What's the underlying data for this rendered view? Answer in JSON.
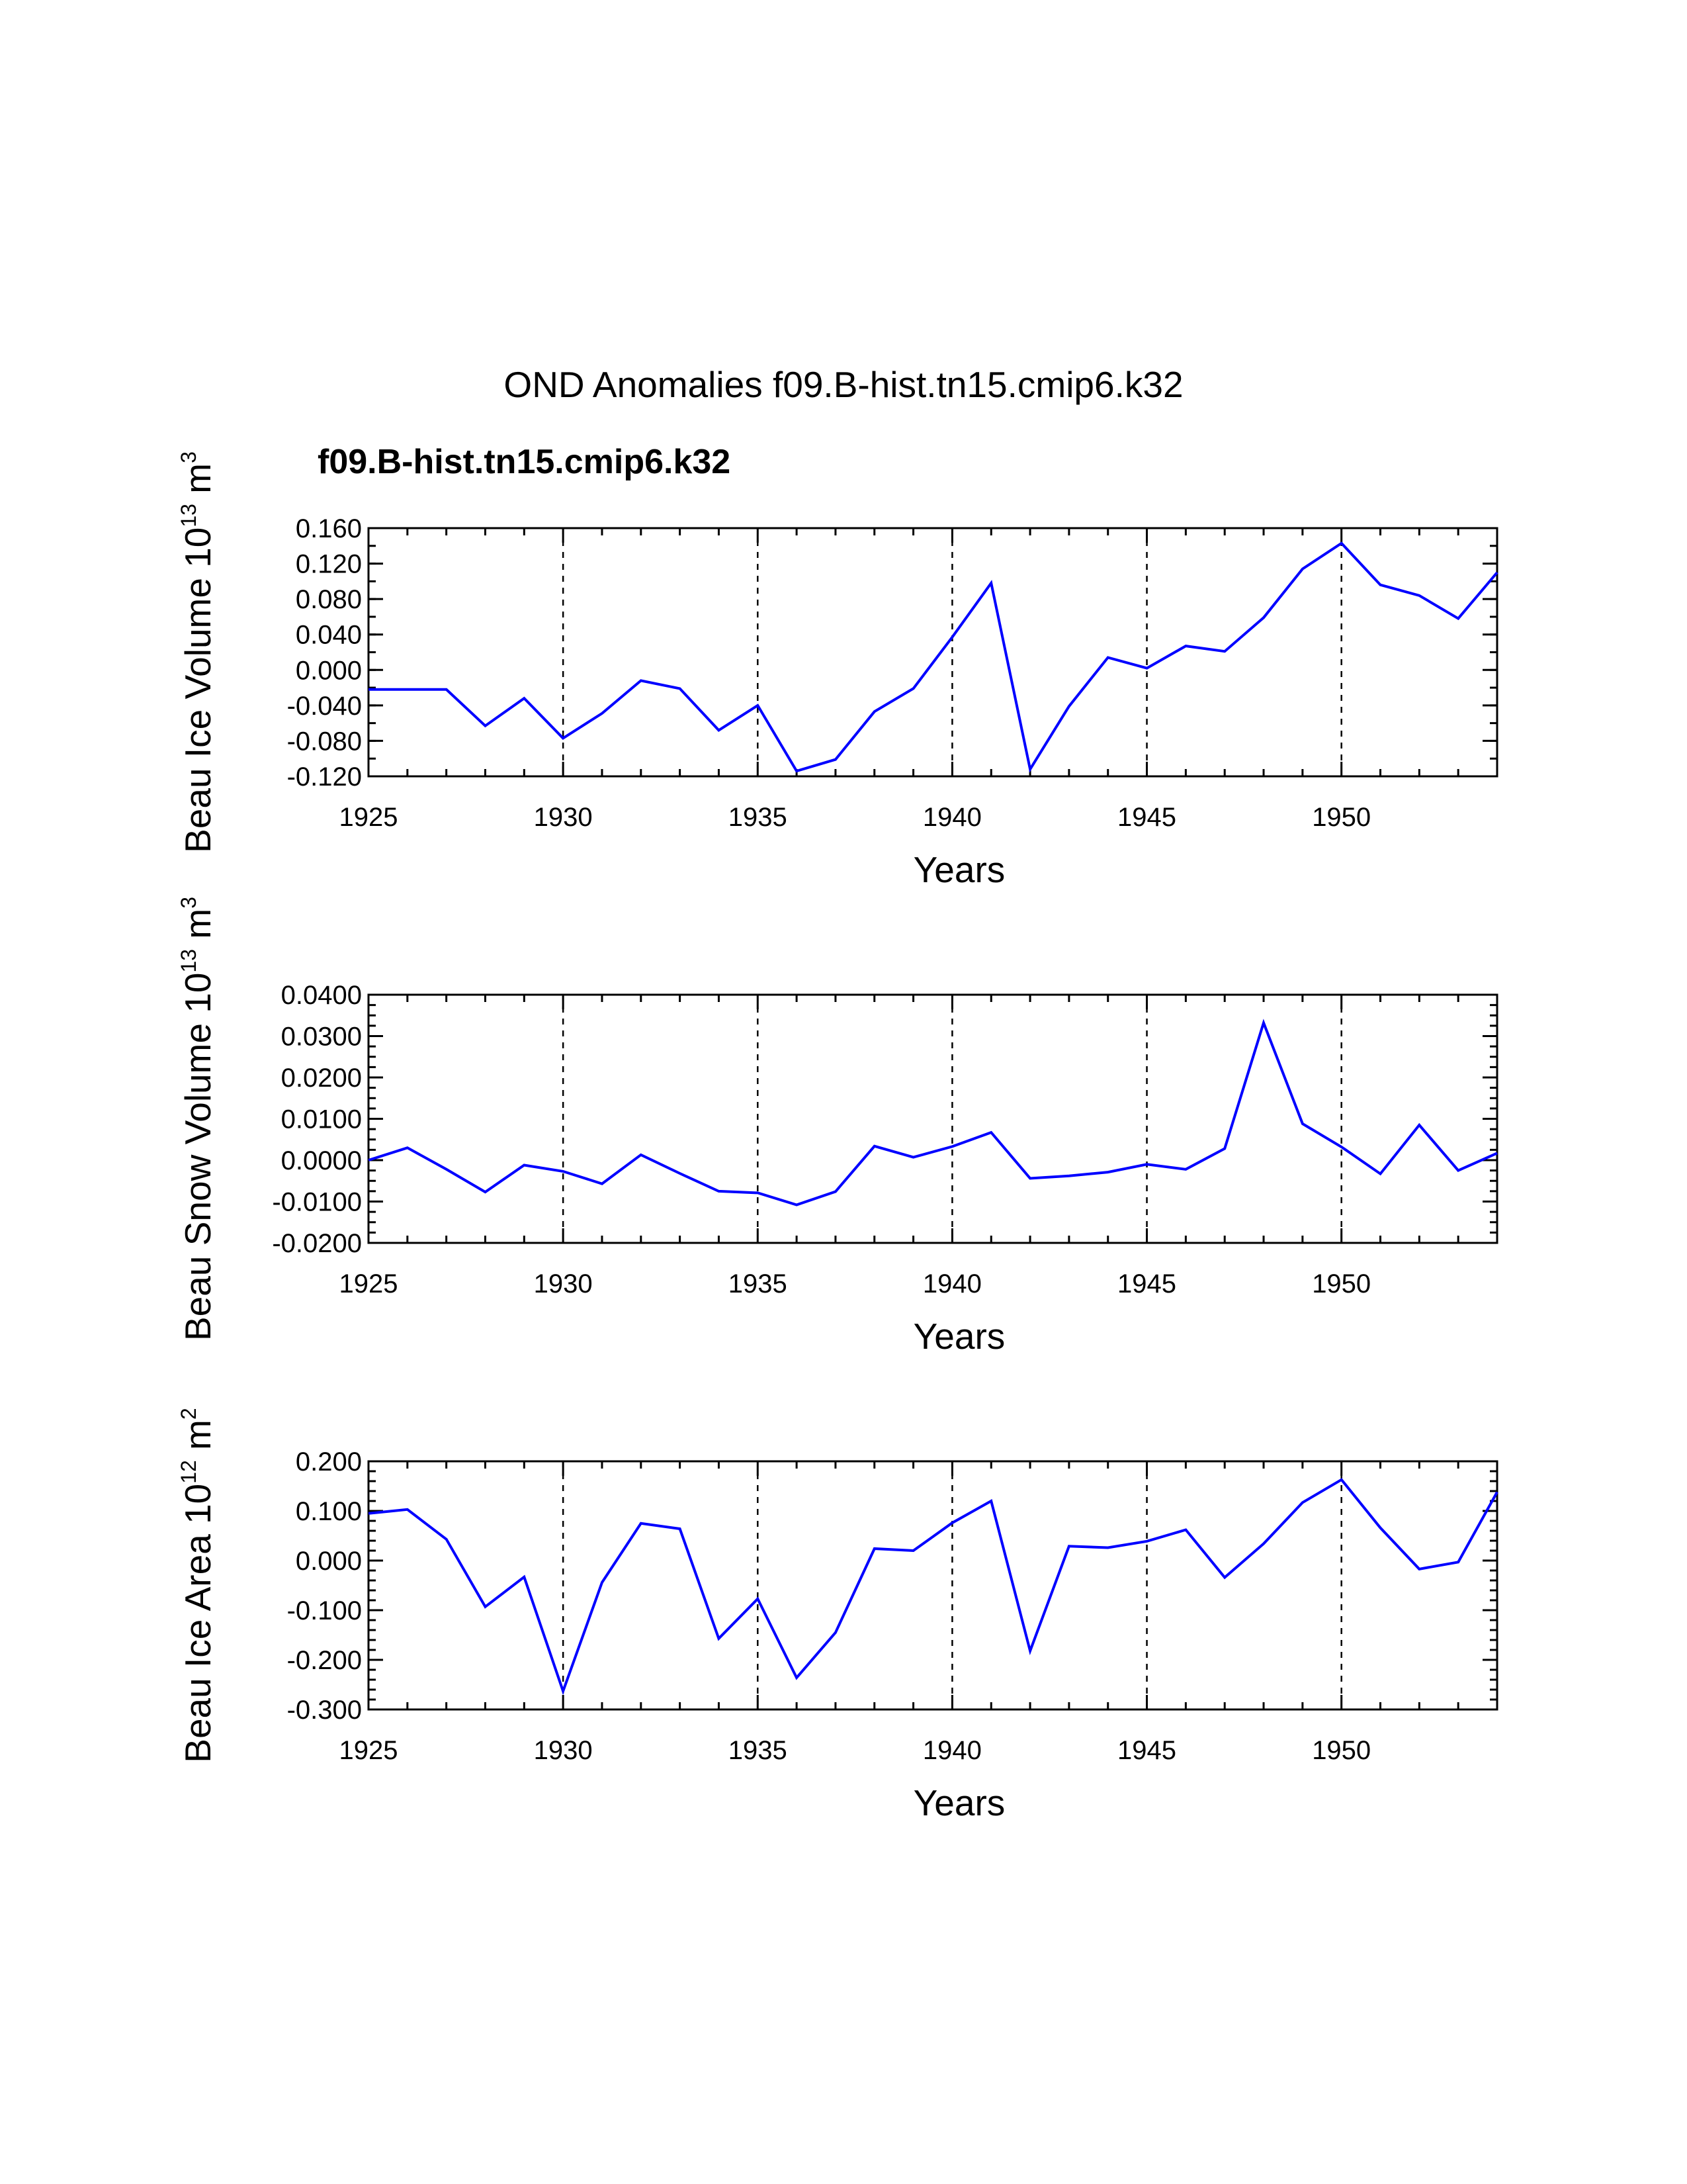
{
  "figure": {
    "title": "OND Anomalies f09.B-hist.tn15.cmip6.k32",
    "case_label": "f09.B-hist.tn15.cmip6.k32",
    "case_color": "#0000ff",
    "line_color": "#0000ff"
  },
  "chart_data": [
    {
      "type": "line",
      "title": "",
      "xlabel": "Years",
      "ylabel": {
        "main": "Beau Ice Volume 10",
        "exponent": "13",
        "unit": " m",
        "unit_exponent": "3"
      },
      "xlim": [
        1925,
        1954
      ],
      "ylim": [
        -0.12,
        0.16
      ],
      "x_ticks": [
        1925,
        1930,
        1935,
        1940,
        1945,
        1950
      ],
      "x_tick_labels": [
        "1925",
        "1930",
        "1935",
        "1940",
        "1945",
        "1950"
      ],
      "y_ticks": [
        -0.12,
        -0.08,
        -0.04,
        0.0,
        0.04,
        0.08,
        0.12,
        0.16
      ],
      "y_tick_labels": [
        "-0.120",
        "-0.080",
        "-0.040",
        "0.000",
        "0.040",
        "0.080",
        "0.120",
        "0.160"
      ],
      "y_minor_step": 0.02,
      "grid_x": [
        1930,
        1935,
        1940,
        1945,
        1950
      ],
      "series": [
        {
          "name": "f09.B-hist.tn15.cmip6.k32",
          "x": [
            1925,
            1926,
            1927,
            1928,
            1929,
            1930,
            1931,
            1932,
            1933,
            1934,
            1935,
            1936,
            1937,
            1938,
            1939,
            1940,
            1941,
            1942,
            1943,
            1944,
            1945,
            1946,
            1947,
            1948,
            1949,
            1950,
            1951,
            1952,
            1953,
            1954
          ],
          "values": [
            -0.022,
            -0.022,
            -0.022,
            -0.063,
            -0.032,
            -0.077,
            -0.049,
            -0.012,
            -0.021,
            -0.068,
            -0.04,
            -0.114,
            -0.101,
            -0.047,
            -0.021,
            0.037,
            0.098,
            -0.112,
            -0.041,
            0.014,
            0.002,
            0.027,
            0.021,
            0.059,
            0.114,
            0.143,
            0.096,
            0.084,
            0.058,
            0.11
          ]
        }
      ]
    },
    {
      "type": "line",
      "title": "",
      "xlabel": "Years",
      "ylabel": {
        "main": "Beau Snow Volume 10",
        "exponent": "13",
        "unit": " m",
        "unit_exponent": "3"
      },
      "xlim": [
        1925,
        1954
      ],
      "ylim": [
        -0.02,
        0.04
      ],
      "x_ticks": [
        1925,
        1930,
        1935,
        1940,
        1945,
        1950
      ],
      "x_tick_labels": [
        "1925",
        "1930",
        "1935",
        "1940",
        "1945",
        "1950"
      ],
      "y_ticks": [
        -0.02,
        -0.01,
        0.0,
        0.01,
        0.02,
        0.03,
        0.04
      ],
      "y_tick_labels": [
        "-0.0200",
        "-0.0100",
        "0.0000",
        "0.0100",
        "0.0200",
        "0.0300",
        "0.0400"
      ],
      "y_minor_step": 0.0025,
      "grid_x": [
        1930,
        1935,
        1940,
        1945,
        1950
      ],
      "series": [
        {
          "name": "f09.B-hist.tn15.cmip6.k32",
          "x": [
            1925,
            1926,
            1927,
            1928,
            1929,
            1930,
            1931,
            1932,
            1933,
            1934,
            1935,
            1936,
            1937,
            1938,
            1939,
            1940,
            1941,
            1942,
            1943,
            1944,
            1945,
            1946,
            1947,
            1948,
            1949,
            1950,
            1951,
            1952,
            1953,
            1954
          ],
          "values": [
            0.0,
            0.003,
            -0.0022,
            -0.0077,
            -0.0012,
            -0.0027,
            -0.0057,
            0.0013,
            -0.0032,
            -0.0075,
            -0.0079,
            -0.0108,
            -0.0076,
            0.0034,
            0.0007,
            0.0033,
            0.0067,
            -0.0044,
            -0.0038,
            -0.0029,
            -0.001,
            -0.0022,
            0.0028,
            0.0332,
            0.0088,
            0.0032,
            -0.0033,
            0.0085,
            -0.0025,
            0.0017
          ]
        }
      ]
    },
    {
      "type": "line",
      "title": "",
      "xlabel": "Years",
      "ylabel": {
        "main": "Beau Ice Area 10",
        "exponent": "12",
        "unit": " m",
        "unit_exponent": "2"
      },
      "xlim": [
        1925,
        1954
      ],
      "ylim": [
        -0.3,
        0.2
      ],
      "x_ticks": [
        1925,
        1930,
        1935,
        1940,
        1945,
        1950
      ],
      "x_tick_labels": [
        "1925",
        "1930",
        "1935",
        "1940",
        "1945",
        "1950"
      ],
      "y_ticks": [
        -0.3,
        -0.2,
        -0.1,
        0.0,
        0.1,
        0.2
      ],
      "y_tick_labels": [
        "-0.300",
        "-0.200",
        "-0.100",
        "0.000",
        "0.100",
        "0.200"
      ],
      "y_minor_step": 0.02,
      "grid_x": [
        1930,
        1935,
        1940,
        1945,
        1950
      ],
      "series": [
        {
          "name": "f09.B-hist.tn15.cmip6.k32",
          "x": [
            1925,
            1926,
            1927,
            1928,
            1929,
            1930,
            1931,
            1932,
            1933,
            1934,
            1935,
            1936,
            1937,
            1938,
            1939,
            1940,
            1941,
            1942,
            1943,
            1944,
            1945,
            1946,
            1947,
            1948,
            1949,
            1950,
            1951,
            1952,
            1953,
            1954
          ],
          "values": [
            0.095,
            0.103,
            0.043,
            -0.093,
            -0.033,
            -0.263,
            -0.044,
            0.075,
            0.064,
            -0.157,
            -0.077,
            -0.236,
            -0.145,
            0.024,
            0.02,
            0.076,
            0.12,
            -0.182,
            0.029,
            0.026,
            0.039,
            0.062,
            -0.034,
            0.034,
            0.117,
            0.163,
            0.066,
            -0.017,
            -0.003,
            0.138
          ]
        }
      ]
    }
  ]
}
